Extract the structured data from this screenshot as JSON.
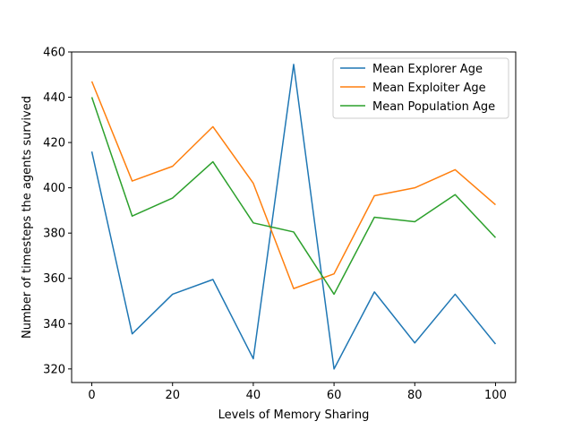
{
  "chart_data": {
    "type": "line",
    "title": "",
    "xlabel": "Levels of Memory Sharing",
    "ylabel": "Number of timesteps the agents survived",
    "xlim": [
      -5,
      105
    ],
    "ylim": [
      314,
      460
    ],
    "x_ticks": [
      0,
      20,
      40,
      60,
      80,
      100
    ],
    "y_ticks": [
      320,
      340,
      360,
      380,
      400,
      420,
      440,
      460
    ],
    "grid": false,
    "legend_position": "top-right",
    "x": [
      0,
      10,
      20,
      30,
      40,
      50,
      60,
      70,
      80,
      90,
      100
    ],
    "series": [
      {
        "name": "Mean Explorer Age",
        "color": "#1f77b4",
        "values": [
          416,
          335.5,
          353,
          359.5,
          324.5,
          454.5,
          320,
          354,
          331.5,
          353,
          331
        ]
      },
      {
        "name": "Mean Exploiter Age",
        "color": "#ff7f0e",
        "values": [
          447,
          403,
          409.5,
          427,
          402,
          355.5,
          362,
          396.5,
          400,
          408,
          392.5
        ]
      },
      {
        "name": "Mean Population Age",
        "color": "#2ca02c",
        "values": [
          440,
          387.5,
          395.5,
          411.5,
          384.5,
          380.5,
          353,
          387,
          385,
          397,
          378
        ]
      }
    ]
  }
}
